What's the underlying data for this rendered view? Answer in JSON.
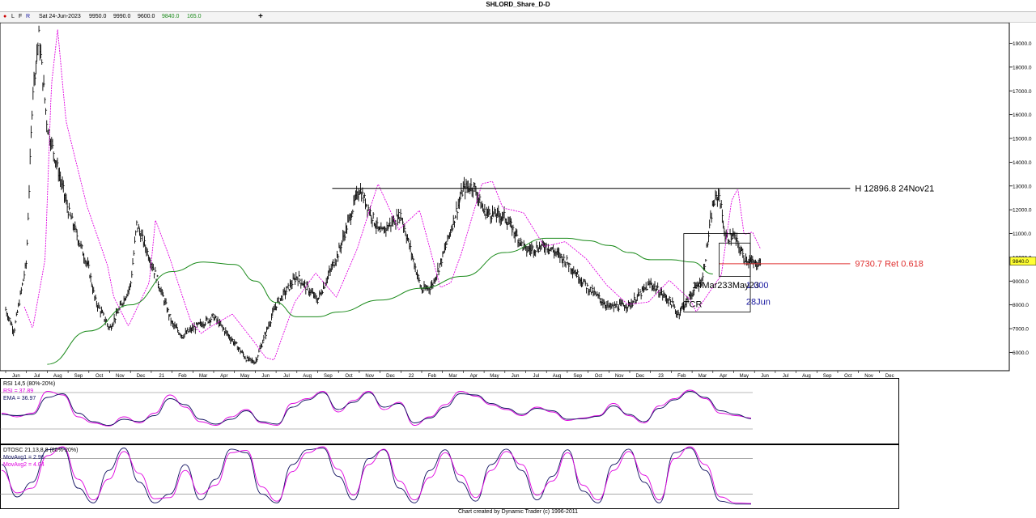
{
  "title": "SHLORD_Share_D-D",
  "infobar": {
    "buttons": [
      "L",
      "F",
      "R"
    ],
    "date": "Sat 24-Jun-2023",
    "open": "9950.0",
    "high": "9990.0",
    "low": "9600.0",
    "close": "9840.0",
    "change": "165.0",
    "add_icon": "plus-icon"
  },
  "colors": {
    "price_bars": "#000000",
    "ema_fast": "#e000e0",
    "ma_slow": "#1a8a1a",
    "hline": "#000000",
    "retrace": "#e03030",
    "cycle_text": "#1a1aa0",
    "price_tag_bg": "#ffff33",
    "osc_line1": "#101060",
    "osc_line2": "#e000e0"
  },
  "chart_data": [
    {
      "type": "bar",
      "panel": "price",
      "title": "SHLORD_Share_D-D",
      "x_tick_labels": [
        "Jun",
        "Jul",
        "Aug",
        "Sep",
        "Oct",
        "Nov",
        "Dec",
        "21",
        "Feb",
        "Mar",
        "Apr",
        "May",
        "Jun",
        "Jul",
        "Aug",
        "Sep",
        "Oct",
        "Nov",
        "Dec",
        "22",
        "Feb",
        "Mar",
        "Apr",
        "May",
        "Jun",
        "Jul",
        "Aug",
        "Sep",
        "Oct",
        "Nov",
        "Dec",
        "23",
        "Feb",
        "Mar",
        "Apr",
        "May",
        "Jun",
        "Jul",
        "Aug",
        "Sep",
        "Oct",
        "Nov",
        "Dec"
      ],
      "y_ticks": [
        "19000.0",
        "18000.0",
        "17000.0",
        "16000.0",
        "15000.0",
        "14000.0",
        "13000.0",
        "12000.0",
        "11000.0",
        "10000.0",
        "9000.0",
        "8000.0",
        "7000.0",
        "6000.0"
      ],
      "ylim": [
        5300,
        19800
      ],
      "grid": false,
      "last_price_tag": "9840.0",
      "price_path": {
        "months": [
          0,
          0.4,
          1,
          1.3,
          1.6,
          2,
          3,
          4,
          4.3,
          5,
          6,
          6.3,
          7,
          8,
          8.5,
          9,
          10,
          11,
          11.6,
          12,
          13,
          14,
          15,
          16,
          17,
          18,
          19,
          20,
          20.5,
          21,
          22,
          22.5,
          23,
          24,
          25,
          26,
          27,
          28,
          29,
          30,
          31,
          32,
          32.3,
          33,
          33.5,
          34,
          34.3,
          34.6,
          35,
          35.5,
          36,
          36.3
        ],
        "close": [
          7800,
          6900,
          9800,
          17000,
          19300,
          15500,
          12000,
          9500,
          8200,
          7000,
          8800,
          11400,
          9800,
          7200,
          6700,
          7000,
          7500,
          6400,
          5700,
          5600,
          8000,
          9200,
          8200,
          10200,
          12900,
          11000,
          11800,
          8600,
          8800,
          10000,
          12900,
          13000,
          11900,
          11700,
          10300,
          10500,
          9800,
          8700,
          7900,
          8000,
          8900,
          8100,
          7600,
          8500,
          9100,
          12200,
          12700,
          10800,
          10900,
          10000,
          9700,
          9840
        ]
      },
      "ema_fast_label": "",
      "series_lines": [
        {
          "role": "ema_fast",
          "lag_months": 0.9
        },
        {
          "role": "ma_slow",
          "points_months": [
            2,
            4,
            6,
            8,
            9.5,
            11,
            12,
            13,
            14,
            15,
            16,
            18,
            20,
            22,
            24,
            26,
            27,
            28,
            29,
            30,
            31,
            32,
            33,
            34
          ],
          "values": [
            5500,
            6900,
            8000,
            9400,
            9800,
            9700,
            9000,
            8100,
            7500,
            7500,
            7700,
            8200,
            8700,
            9200,
            10200,
            10800,
            10800,
            10700,
            10500,
            10200,
            9900,
            9900,
            9800,
            9300
          ]
        }
      ],
      "annotations": [
        {
          "kind": "hline",
          "value": 12896.8,
          "from_month": 15.7,
          "to_month": 40.6,
          "label": "H 12896.8 24Nov21"
        },
        {
          "kind": "hline",
          "value": 9730.7,
          "from_month": 34.3,
          "to_month": 40.6,
          "label": "9730.7 Ret 0.618"
        },
        {
          "kind": "text",
          "value": "14Mar23",
          "month": 33.0,
          "price": 8700
        },
        {
          "kind": "text",
          "value": "3May23",
          "month": 34.7,
          "price": 8700
        },
        {
          "kind": "text",
          "value": "1.000",
          "month": 35.6,
          "price": 8700
        },
        {
          "kind": "text",
          "value": "28Jun",
          "month": 35.6,
          "price": 8000
        },
        {
          "kind": "text",
          "value": "TCR",
          "month": 32.6,
          "price": 7900
        },
        {
          "kind": "box",
          "from_month": 32.6,
          "to_month": 35.8,
          "top": 11000,
          "bottom": 7700
        },
        {
          "kind": "box",
          "from_month": 34.3,
          "to_month": 35.8,
          "top": 10600,
          "bottom": 9200
        }
      ]
    },
    {
      "type": "line",
      "panel": "rsi",
      "legend": [
        "RSI 14,5 (80%-20%)",
        "RSI = 37.89",
        "EMA = 36.97"
      ],
      "ylim": [
        0,
        100
      ],
      "levels": [
        80,
        20
      ],
      "series": [
        {
          "name": "RSI",
          "color": "#e000e0",
          "values": [
            46,
            40,
            46,
            82,
            76,
            40,
            30,
            25,
            40,
            30,
            46,
            76,
            56,
            32,
            26,
            40,
            52,
            30,
            26,
            62,
            70,
            82,
            48,
            67,
            82,
            52,
            64,
            26,
            40,
            60,
            82,
            74,
            60,
            52,
            42,
            56,
            48,
            34,
            38,
            42,
            62,
            42,
            30,
            58,
            70,
            84,
            70,
            46,
            42,
            38
          ]
        },
        {
          "name": "EMA",
          "color": "#101060",
          "values": [
            44,
            42,
            44,
            72,
            78,
            46,
            32,
            26,
            36,
            32,
            42,
            70,
            60,
            36,
            28,
            36,
            50,
            32,
            28,
            56,
            68,
            80,
            52,
            64,
            80,
            56,
            62,
            30,
            38,
            56,
            78,
            76,
            62,
            54,
            44,
            54,
            50,
            36,
            37,
            41,
            58,
            44,
            32,
            54,
            68,
            82,
            72,
            50,
            44,
            37
          ]
        }
      ]
    },
    {
      "type": "line",
      "panel": "dtosc",
      "legend": [
        "DTOSC 21,13,8,8 (80%-20%)",
        "MovAvg1 = 2.96",
        "MovAvg2 = 4.04"
      ],
      "ylim": [
        0,
        100
      ],
      "levels": [
        80,
        20
      ],
      "series": [
        {
          "name": "MovAvg1",
          "color": "#101060",
          "values": [
            70,
            15,
            40,
            95,
            98,
            30,
            5,
            60,
            98,
            40,
            5,
            20,
            70,
            10,
            45,
            96,
            90,
            20,
            5,
            70,
            95,
            98,
            50,
            10,
            80,
            95,
            30,
            5,
            60,
            95,
            40,
            8,
            70,
            96,
            60,
            10,
            50,
            95,
            25,
            5,
            70,
            96,
            40,
            5,
            90,
            98,
            60,
            8,
            3,
            3
          ]
        },
        {
          "name": "MovAvg2",
          "color": "#e000e0",
          "values": [
            60,
            22,
            30,
            85,
            100,
            45,
            10,
            45,
            92,
            55,
            12,
            14,
            60,
            20,
            35,
            90,
            94,
            32,
            8,
            58,
            90,
            100,
            62,
            18,
            70,
            96,
            42,
            10,
            48,
            90,
            52,
            14,
            60,
            92,
            70,
            18,
            42,
            90,
            35,
            10,
            60,
            92,
            52,
            10,
            80,
            100,
            70,
            15,
            5,
            4
          ]
        }
      ]
    }
  ],
  "footer": "Chart created by Dynamic Trader  (c)  1996-2011"
}
